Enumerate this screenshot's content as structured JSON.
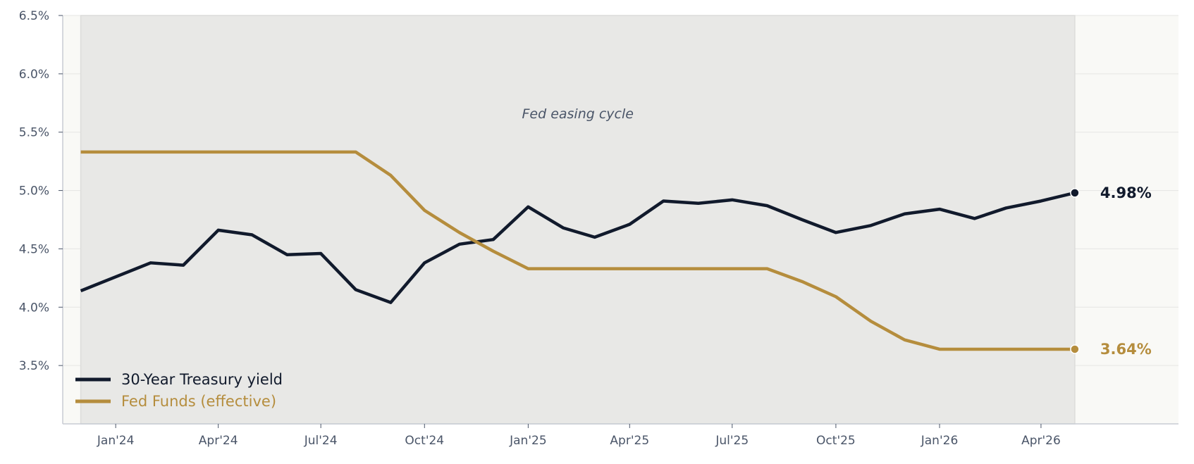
{
  "chart_data": {
    "type": "line",
    "title": "",
    "xlabel": "",
    "ylabel": "",
    "ylim": [
      3.0,
      6.5
    ],
    "xlim": [
      "2023-11-15",
      "2026-08-01"
    ],
    "grid": "horizontal",
    "legend_position": "bottom-left",
    "y_ticks": [
      3.5,
      4.0,
      4.5,
      5.0,
      5.5,
      6.0,
      6.5
    ],
    "y_tick_labels": [
      "3.5%",
      "4.0%",
      "4.5%",
      "5.0%",
      "5.5%",
      "6.0%",
      "6.5%"
    ],
    "x_ticks": [
      "2024-01-01",
      "2024-04-01",
      "2024-07-01",
      "2024-10-01",
      "2025-01-01",
      "2025-04-01",
      "2025-07-01",
      "2025-10-01",
      "2026-01-01",
      "2026-04-01"
    ],
    "x_tick_labels": [
      "Jan'24",
      "Apr'24",
      "Jul'24",
      "Oct'24",
      "Jan'25",
      "Apr'25",
      "Jul'25",
      "Oct'25",
      "Jan'26",
      "Apr'26"
    ],
    "x": [
      "2023-12-01",
      "2024-01-01",
      "2024-02-01",
      "2024-03-01",
      "2024-04-01",
      "2024-05-01",
      "2024-06-01",
      "2024-07-01",
      "2024-08-01",
      "2024-09-01",
      "2024-10-01",
      "2024-11-01",
      "2024-12-01",
      "2025-01-01",
      "2025-02-01",
      "2025-03-01",
      "2025-04-01",
      "2025-05-01",
      "2025-06-01",
      "2025-07-01",
      "2025-08-01",
      "2025-09-01",
      "2025-10-01",
      "2025-11-01",
      "2025-12-01",
      "2026-01-01",
      "2026-02-01",
      "2026-03-01",
      "2026-04-01",
      "2026-05-01"
    ],
    "series": [
      {
        "name": "30-Year Treasury yield",
        "color": "#111a2c",
        "values": [
          4.14,
          4.26,
          4.38,
          4.36,
          4.66,
          4.62,
          4.45,
          4.46,
          4.15,
          4.04,
          4.38,
          4.54,
          4.58,
          4.86,
          4.68,
          4.6,
          4.71,
          4.91,
          4.89,
          4.92,
          4.87,
          4.75,
          4.64,
          4.7,
          4.8,
          4.84,
          4.76,
          4.85,
          4.91,
          4.98
        ],
        "end_label": "4.98%"
      },
      {
        "name": "Fed Funds (effective)",
        "color": "#b58d3d",
        "values": [
          5.33,
          5.33,
          5.33,
          5.33,
          5.33,
          5.33,
          5.33,
          5.33,
          5.33,
          5.13,
          4.83,
          4.64,
          4.48,
          4.33,
          4.33,
          4.33,
          4.33,
          4.33,
          4.33,
          4.33,
          4.33,
          4.22,
          4.09,
          3.88,
          3.72,
          3.64,
          3.64,
          3.64,
          3.64,
          3.64
        ],
        "end_label": "3.64%"
      }
    ],
    "shaded_region": {
      "start": "2023-12-01",
      "end": "2026-05-01",
      "label": "Fed easing cycle",
      "color": "#e8e8e6"
    },
    "plot_background": "#f9f9f6"
  }
}
